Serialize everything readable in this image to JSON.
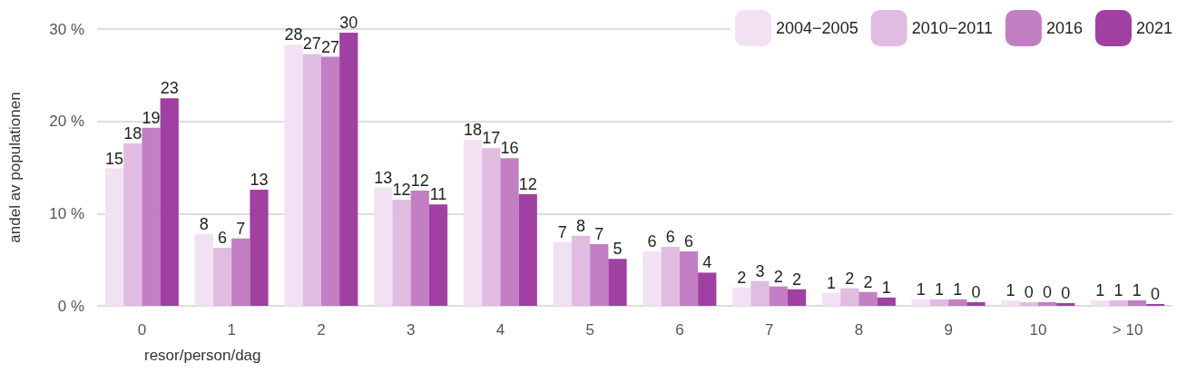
{
  "chart_data": {
    "type": "bar",
    "xlabel": "resor/person/dag",
    "ylabel": "andel av populationen",
    "categories": [
      "0",
      "1",
      "2",
      "3",
      "4",
      "5",
      "6",
      "7",
      "8",
      "9",
      "10",
      "> 10"
    ],
    "series": [
      {
        "name": "2004−2005",
        "color": "#f2e1f2",
        "values": [
          14.9,
          7.8,
          28.3,
          12.8,
          18.0,
          6.9,
          5.9,
          2.0,
          1.4,
          0.7,
          0.6,
          0.6
        ],
        "value_labels": [
          "15",
          "8",
          "28",
          "13",
          "18",
          "7",
          "6",
          "2",
          "1",
          "1",
          "1",
          "1"
        ]
      },
      {
        "name": "2010−2011",
        "color": "#e0bde0",
        "values": [
          17.6,
          6.3,
          27.3,
          11.5,
          17.1,
          7.6,
          6.4,
          2.7,
          1.9,
          0.7,
          0.4,
          0.6
        ],
        "value_labels": [
          "18",
          "6",
          "27",
          "12",
          "17",
          "8",
          "6",
          "3",
          "2",
          "1",
          "0",
          "1"
        ]
      },
      {
        "name": "2016",
        "color": "#c27fc4",
        "values": [
          19.3,
          7.3,
          27.0,
          12.5,
          16.0,
          6.7,
          5.9,
          2.1,
          1.5,
          0.7,
          0.4,
          0.6
        ],
        "value_labels": [
          "19",
          "7",
          "27",
          "12",
          "16",
          "7",
          "6",
          "2",
          "2",
          "1",
          "0",
          "1"
        ]
      },
      {
        "name": "2021",
        "color": "#a040a2",
        "values": [
          22.5,
          12.6,
          29.6,
          11.0,
          12.1,
          5.1,
          3.6,
          1.8,
          0.9,
          0.4,
          0.3,
          0.2
        ],
        "value_labels": [
          "23",
          "13",
          "30",
          "11",
          "12",
          "5",
          "4",
          "2",
          "1",
          "0",
          "0",
          "0"
        ]
      }
    ],
    "ylim": [
      0,
      30
    ],
    "yticks": [
      {
        "value": 0,
        "label": "0 %"
      },
      {
        "value": 10,
        "label": "10 %"
      },
      {
        "value": 20,
        "label": "20 %"
      },
      {
        "value": 30,
        "label": "30 %"
      }
    ],
    "grid": "y",
    "legend": "top right"
  }
}
